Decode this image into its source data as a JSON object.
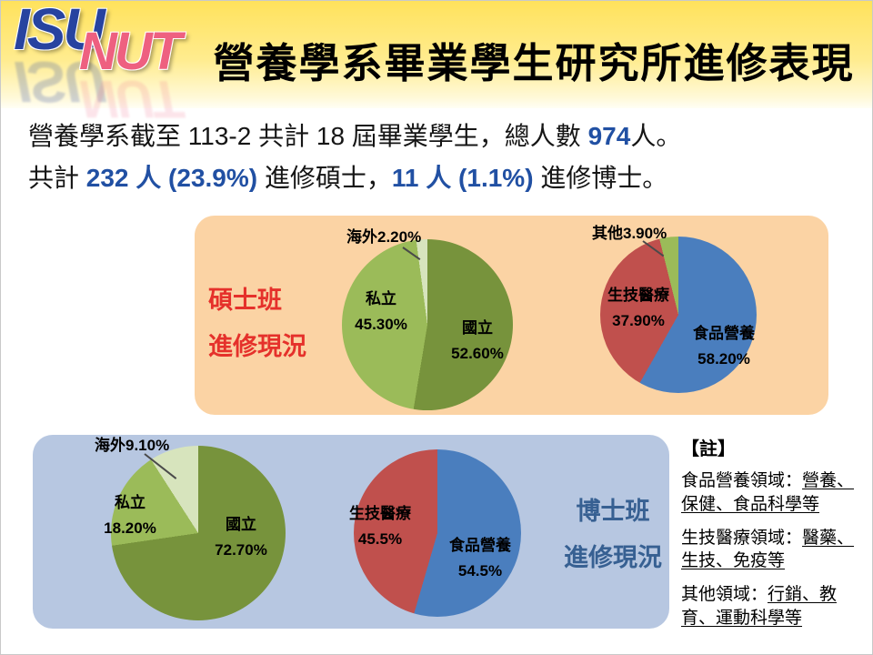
{
  "slide": {
    "title": "營養學系畢業學生研究所進修表現"
  },
  "logo": {
    "isu": "ISU",
    "nut": "NUT"
  },
  "intro": {
    "l1a": "營養學系截至 113-2 共計 18 屆畢業學生，總人數 ",
    "l1b": "974",
    "l1c": "人。",
    "l2a": "共計 ",
    "l2b": "232 人 (23.9%)",
    "l2c": " 進修碩士，",
    "l2d": "11 人 (1.1%)",
    "l2e": " 進修博士。"
  },
  "master_panel": {
    "label_line1": "碩士班",
    "label_line2": "進修現況"
  },
  "doctor_panel": {
    "label_line1": "博士班",
    "label_line2": "進修現況"
  },
  "notes": {
    "title": "【註】",
    "items": [
      {
        "head": "食品營養領域：",
        "body": "營養、保健、食品科學等"
      },
      {
        "head": "生技醫療領域：",
        "body": "醫藥、生技、免疫等"
      },
      {
        "head": "其他領域：",
        "body": "行銷、教育、運動科學等"
      }
    ]
  },
  "colors": {
    "banner_yellow": "#FFE25C",
    "master_box_peach": "#FBD3A4",
    "doctor_box_blue": "#B7C7E1",
    "accent_text_blue": "#2150A3",
    "master_label_red": "#E5312B",
    "doctor_label_blue": "#376092",
    "pie_olive": "#77933C",
    "pie_green": "#9BBB59",
    "pie_pale": "#D7E4BD",
    "pie_blue": "#4A7EBE",
    "pie_red": "#C0504D"
  },
  "chart_data": [
    {
      "type": "pie",
      "name": "master-school-pie",
      "slices": [
        {
          "label": "國立",
          "value": 52.6,
          "pct": "52.60%",
          "color": "#77933C"
        },
        {
          "label": "私立",
          "value": 45.3,
          "pct": "45.30%",
          "color": "#9BBB59"
        },
        {
          "label": "海外",
          "value": 2.2,
          "pct": "2.20%",
          "color": "#D7E4BD"
        }
      ]
    },
    {
      "type": "pie",
      "name": "master-field-pie",
      "slices": [
        {
          "label": "食品營養",
          "value": 58.2,
          "pct": "58.20%",
          "color": "#4A7EBE"
        },
        {
          "label": "生技醫療",
          "value": 37.9,
          "pct": "37.90%",
          "color": "#C0504D"
        },
        {
          "label": "其他",
          "value": 3.9,
          "pct": "3.90%",
          "color": "#9BBB59"
        }
      ]
    },
    {
      "type": "pie",
      "name": "doctor-school-pie",
      "slices": [
        {
          "label": "國立",
          "value": 72.7,
          "pct": "72.70%",
          "color": "#77933C"
        },
        {
          "label": "私立",
          "value": 18.2,
          "pct": "18.20%",
          "color": "#9BBB59"
        },
        {
          "label": "海外",
          "value": 9.1,
          "pct": "9.10%",
          "color": "#D7E4BD"
        }
      ]
    },
    {
      "type": "pie",
      "name": "doctor-field-pie",
      "slices": [
        {
          "label": "食品營養",
          "value": 54.5,
          "pct": "54.5%",
          "color": "#4A7EBE"
        },
        {
          "label": "生技醫療",
          "value": 45.5,
          "pct": "45.5%",
          "color": "#C0504D"
        }
      ]
    }
  ]
}
